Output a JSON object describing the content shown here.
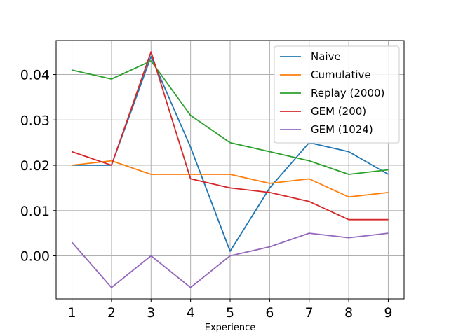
{
  "chart_data": {
    "type": "line",
    "title": "",
    "xlabel": "Experience",
    "ylabel": "",
    "x": [
      1,
      2,
      3,
      4,
      5,
      6,
      7,
      8,
      9
    ],
    "xlim": [
      0.6,
      9.4
    ],
    "ylim": [
      -0.0095,
      0.0475
    ],
    "xticks": [
      1,
      2,
      3,
      4,
      5,
      6,
      7,
      8,
      9
    ],
    "yticks": [
      0.0,
      0.01,
      0.02,
      0.03,
      0.04
    ],
    "ytick_labels": [
      "0.00",
      "0.01",
      "0.02",
      "0.03",
      "0.04"
    ],
    "grid": true,
    "legend_position": "top-right",
    "series": [
      {
        "name": "Naive",
        "color": "#1f77b4",
        "values": [
          0.02,
          0.02,
          0.044,
          0.024,
          0.001,
          0.015,
          0.025,
          0.023,
          0.018
        ]
      },
      {
        "name": "Cumulative",
        "color": "#ff7f0e",
        "values": [
          0.02,
          0.021,
          0.018,
          0.018,
          0.018,
          0.016,
          0.017,
          0.013,
          0.014
        ]
      },
      {
        "name": "Replay (2000)",
        "color": "#2ca02c",
        "values": [
          0.041,
          0.039,
          0.043,
          0.031,
          0.025,
          0.023,
          0.021,
          0.018,
          0.019
        ]
      },
      {
        "name": "GEM (200)",
        "color": "#d62728",
        "values": [
          0.023,
          0.02,
          0.045,
          0.017,
          0.015,
          0.014,
          0.012,
          0.008,
          0.008
        ]
      },
      {
        "name": "GEM (1024)",
        "color": "#9467bd",
        "values": [
          0.003,
          -0.007,
          0.0,
          -0.007,
          0.0,
          0.002,
          0.005,
          0.004,
          0.005
        ]
      }
    ]
  }
}
